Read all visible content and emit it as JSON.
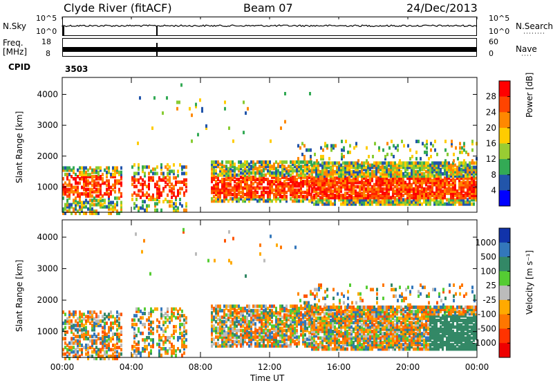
{
  "header": {
    "station": "Clyde River (fitACF)",
    "beam": "Beam 07",
    "date": "24/Dec/2013"
  },
  "top_panels": {
    "nsky_label": "N.Sky",
    "nsearch_label": "N.Search",
    "nsky_ticks": [
      "10^5",
      "10^0"
    ],
    "nsearch_ticks": [
      "10^5",
      "10^0"
    ],
    "freq_label_1": "Freq.",
    "freq_label_2": "[MHz]",
    "freq_ticks": [
      "18",
      "8"
    ],
    "nave_label": "Nave",
    "nave_ticks": [
      "60",
      "0"
    ],
    "cpid_label": "CPID",
    "cpid_value": "3503"
  },
  "chart_data": [
    {
      "type": "heatmap",
      "title": "",
      "ylabel": "Slant Range [km]",
      "xlabel": "",
      "yticks": [
        1000,
        2000,
        3000,
        4000
      ],
      "ylim": [
        180,
        4550
      ],
      "colorbar": {
        "label": "Power [dB]",
        "ticks": [
          "28",
          "24",
          "20",
          "16",
          "12",
          "8",
          "4"
        ],
        "colors": [
          "#ff0000",
          "#ff4400",
          "#ff8800",
          "#ffcc00",
          "#99cc33",
          "#33aa55",
          "#2255aa",
          "#0000ff"
        ]
      }
    },
    {
      "type": "heatmap",
      "title": "",
      "ylabel": "Slant Range [km]",
      "xlabel": "Time UT",
      "yticks": [
        1000,
        2000,
        3000,
        4000
      ],
      "ylim": [
        180,
        4550
      ],
      "xticks": [
        "00:00",
        "04:00",
        "08:00",
        "12:00",
        "16:00",
        "20:00",
        "00:00"
      ],
      "colorbar": {
        "label": "Velocity [m s⁻¹]",
        "ticks": [
          "1000",
          "500",
          "100",
          "25",
          "-25",
          "-100",
          "-500",
          "-1000"
        ],
        "colors": [
          "#1133aa",
          "#3377bb",
          "#338866",
          "#55cc33",
          "#bbbbbb",
          "#ffaa00",
          "#ff7700",
          "#ff3300",
          "#ee0000"
        ]
      }
    }
  ]
}
